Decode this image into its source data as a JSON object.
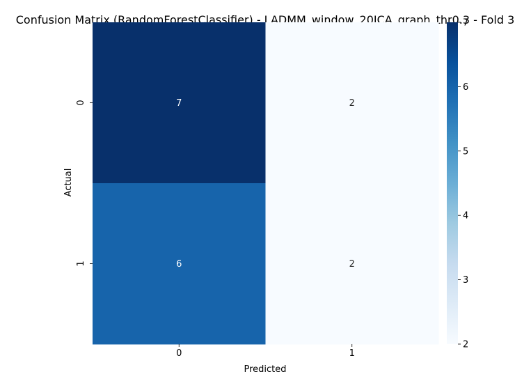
{
  "chart_data": {
    "type": "heatmap",
    "title": "Confusion Matrix (RandomForestClassifier) - LADMM_window_20ICA_graph_thr0.3 - Fold 3",
    "xlabel": "Predicted",
    "ylabel": "Actual",
    "x_categories": [
      "0",
      "1"
    ],
    "y_categories": [
      "0",
      "1"
    ],
    "values": [
      [
        7,
        2
      ],
      [
        6,
        2
      ]
    ],
    "annotations": true,
    "colormap": "Blues",
    "colorbar": {
      "min": 2,
      "max": 7,
      "ticks": [
        "2",
        "3",
        "4",
        "5",
        "6",
        "7"
      ]
    }
  },
  "colors": {
    "low": "#f7fbff",
    "high": "#08306b"
  }
}
